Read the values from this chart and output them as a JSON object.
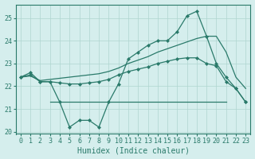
{
  "x": [
    0,
    1,
    2,
    3,
    4,
    5,
    6,
    7,
    8,
    9,
    10,
    11,
    12,
    13,
    14,
    15,
    16,
    17,
    18,
    19,
    20,
    21,
    22,
    23
  ],
  "line_jagged": [
    22.4,
    22.6,
    22.2,
    22.2,
    21.3,
    20.2,
    20.5,
    20.5,
    20.2,
    21.3,
    22.1,
    23.2,
    23.5,
    23.8,
    24.0,
    24.0,
    24.4,
    25.1,
    25.3,
    24.2,
    23.0,
    22.4,
    21.9,
    21.3
  ],
  "line_upper": [
    22.4,
    22.45,
    22.25,
    22.3,
    22.35,
    22.4,
    22.45,
    22.5,
    22.55,
    22.65,
    22.8,
    23.0,
    23.15,
    23.3,
    23.5,
    23.65,
    23.8,
    23.95,
    24.1,
    24.2,
    24.2,
    23.5,
    22.4,
    21.9
  ],
  "line_lower": [
    22.4,
    22.5,
    22.2,
    22.2,
    22.15,
    22.1,
    22.1,
    22.15,
    22.2,
    22.3,
    22.5,
    22.65,
    22.75,
    22.85,
    23.0,
    23.1,
    23.2,
    23.25,
    23.25,
    23.0,
    22.9,
    22.2,
    21.9,
    21.3
  ],
  "flat_y": 21.3,
  "flat_x_start": 3,
  "flat_x_end": 21,
  "color": "#2a7a6a",
  "bg_color": "#d5eeed",
  "grid_color": "#afd5d0",
  "xlabel": "Humidex (Indice chaleur)",
  "xlabel_fontsize": 7,
  "tick_fontsize": 6,
  "ylim": [
    19.9,
    25.6
  ],
  "xlim": [
    -0.5,
    23.5
  ],
  "yticks": [
    20,
    21,
    22,
    23,
    24,
    25
  ],
  "xticks": [
    0,
    1,
    2,
    3,
    4,
    5,
    6,
    7,
    8,
    9,
    10,
    11,
    12,
    13,
    14,
    15,
    16,
    17,
    18,
    19,
    20,
    21,
    22,
    23
  ]
}
